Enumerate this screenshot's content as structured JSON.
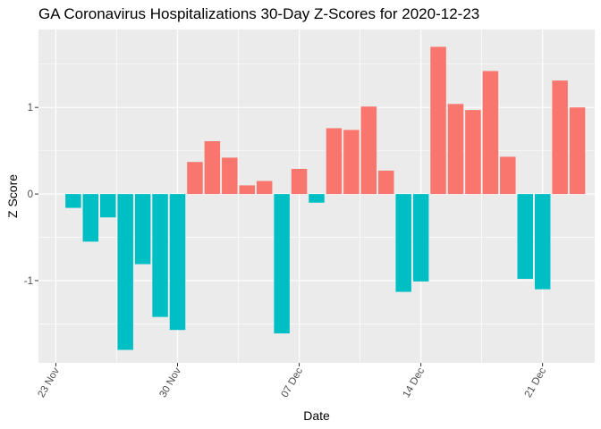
{
  "chart_data": {
    "type": "bar",
    "title": "GA Coronavirus Hospitalizations 30-Day Z-Scores for 2020-12-23",
    "xlabel": "Date",
    "ylabel": "Z Score",
    "x_ticks": [
      {
        "date": "2020-11-23",
        "label": "23 Nov"
      },
      {
        "date": "2020-11-30",
        "label": "30 Nov"
      },
      {
        "date": "2020-12-07",
        "label": "07 Dec"
      },
      {
        "date": "2020-12-14",
        "label": "14 Dec"
      },
      {
        "date": "2020-12-21",
        "label": "21 Dec"
      }
    ],
    "y_ticks": [
      {
        "value": -1,
        "label": "-1"
      },
      {
        "value": 0,
        "label": "0"
      },
      {
        "value": 1,
        "label": "1"
      }
    ],
    "xlim": [
      "2020-11-22",
      "2020-12-24"
    ],
    "ylim": [
      -1.95,
      1.9
    ],
    "grid": true,
    "legend": "none",
    "colors": {
      "positive": "#F8766D",
      "negative": "#00BFC4",
      "panel": "#EBEBEB",
      "grid": "#FFFFFF"
    },
    "dates": [
      "2020-11-24",
      "2020-11-25",
      "2020-11-26",
      "2020-11-27",
      "2020-11-28",
      "2020-11-29",
      "2020-11-30",
      "2020-12-01",
      "2020-12-02",
      "2020-12-03",
      "2020-12-04",
      "2020-12-05",
      "2020-12-06",
      "2020-12-07",
      "2020-12-08",
      "2020-12-09",
      "2020-12-10",
      "2020-12-11",
      "2020-12-12",
      "2020-12-13",
      "2020-12-14",
      "2020-12-15",
      "2020-12-16",
      "2020-12-17",
      "2020-12-18",
      "2020-12-19",
      "2020-12-20",
      "2020-12-21",
      "2020-12-22",
      "2020-12-23"
    ],
    "values": [
      -0.16,
      -0.55,
      -0.27,
      -1.8,
      -0.81,
      -1.42,
      -1.57,
      0.37,
      0.61,
      0.42,
      0.1,
      0.15,
      -1.61,
      0.29,
      -0.1,
      0.76,
      0.74,
      1.01,
      0.27,
      -1.13,
      -1.01,
      1.7,
      1.04,
      0.97,
      1.42,
      0.43,
      -0.98,
      -1.1,
      1.31,
      1.0
    ]
  }
}
